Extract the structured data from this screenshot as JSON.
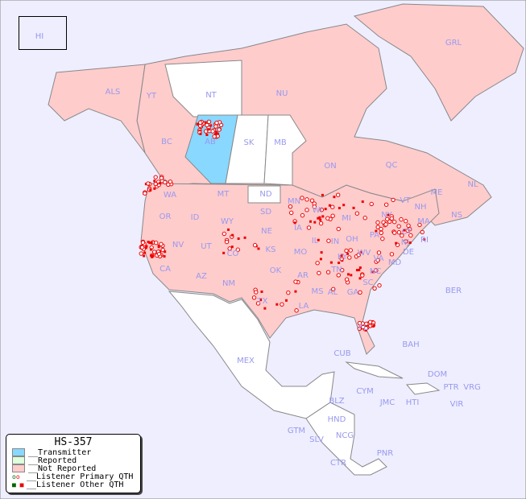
{
  "legend": {
    "title": "HS-357",
    "items": [
      {
        "label": "__Transmitter",
        "color": "#88d8ff"
      },
      {
        "label": "__Reported",
        "color": "#ddffdd"
      },
      {
        "label": "__Not Reported",
        "color": "#ffcccc"
      },
      {
        "label": "__Listener Primary QTH"
      },
      {
        "label": "__Listener Other QTH"
      }
    ]
  },
  "colors": {
    "ocean": "#eeeeff",
    "not_reported": "#ffcccc",
    "transmitter": "#88d8ff",
    "no_data": "#ffffff",
    "label": "#9999ee",
    "marker": "#ee0000"
  },
  "labels": [
    "HI",
    "ALS",
    "YT",
    "NT",
    "NU",
    "GRL",
    "BC",
    "AB",
    "SK",
    "MB",
    "ON",
    "QC",
    "NL",
    "NS",
    "WA",
    "MT",
    "ND",
    "MN",
    "OR",
    "ID",
    "WY",
    "SD",
    "WI",
    "MI",
    "NY",
    "VT",
    "NH",
    "ME",
    "MA",
    "CT",
    "RI",
    "NJ",
    "DE",
    "MD",
    "PA",
    "OH",
    "IN",
    "IL",
    "IA",
    "NE",
    "NV",
    "UT",
    "CO",
    "KS",
    "MO",
    "KY",
    "WV",
    "VA",
    "CA",
    "AZ",
    "NM",
    "OK",
    "AR",
    "TN",
    "NC",
    "SC",
    "GA",
    "AL",
    "MS",
    "LA",
    "TX",
    "FL",
    "BER",
    "BAH",
    "CUB",
    "MEX",
    "DOM",
    "PTR",
    "VRG",
    "CYM",
    "JMC",
    "HTI",
    "VIR",
    "BLZ",
    "HND",
    "GTM",
    "SLV",
    "NCG",
    "CTR",
    "PNR"
  ]
}
